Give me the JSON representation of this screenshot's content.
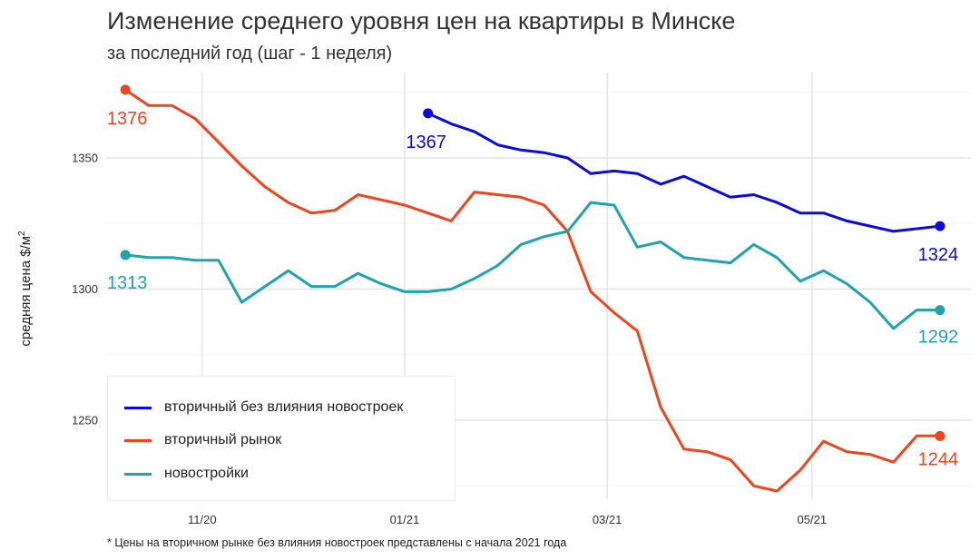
{
  "chart_data": {
    "type": "line",
    "title": "Изменение среднего уровня цен на квартиры в Минске",
    "subtitle": "за последний год (шаг - 1 неделя)",
    "ylabel_main": "средняя цена $/м",
    "ylabel_sup": "2",
    "xlabel": "",
    "footnote": "* Цены на вторичном рынке без влияния новостроек представлены с начала 2021 года",
    "ylim": [
      1216,
      1380
    ],
    "yticks": [
      1250,
      1300,
      1350
    ],
    "ytick_labels": [
      "1250",
      "1300",
      "1350"
    ],
    "xlim": [
      0,
      40
    ],
    "x_ticks": [
      {
        "x": 4.3,
        "label": "11/20"
      },
      {
        "x": 13.0,
        "label": "01/21"
      },
      {
        "x": 21.7,
        "label": "03/21"
      },
      {
        "x": 30.5,
        "label": "05/21"
      }
    ],
    "grid": true,
    "legend_position": "bottom-left",
    "series": [
      {
        "name": "вторичный без влияния новостроек",
        "color": "#0a0adc",
        "x": [
          14,
          15,
          16,
          17,
          18,
          19,
          20,
          21,
          22,
          23,
          24,
          25,
          26,
          27,
          28,
          29,
          30,
          31,
          32,
          33,
          34,
          35,
          36
        ],
        "values": [
          1367,
          1363,
          1360,
          1355,
          1353,
          1352,
          1350,
          1344,
          1345,
          1344,
          1340,
          1343,
          1339,
          1335,
          1336,
          1333,
          1329,
          1329,
          1326,
          1324,
          1322,
          1323,
          1324
        ],
        "start_label": "1367",
        "end_label": "1324"
      },
      {
        "name": "вторичный рынок",
        "color": "#f0441c",
        "x": [
          1,
          2,
          3,
          4,
          5,
          6,
          7,
          8,
          9,
          10,
          11,
          12,
          13,
          14,
          15,
          16,
          17,
          18,
          19,
          20,
          21,
          22,
          23,
          24,
          25,
          26,
          27,
          28,
          29,
          30,
          31,
          32,
          33,
          34,
          35,
          36
        ],
        "values": [
          1376,
          1370,
          1370,
          1365,
          1356,
          1347,
          1339,
          1333,
          1329,
          1330,
          1336,
          1334,
          1332,
          1329,
          1326,
          1337,
          1336,
          1335,
          1332,
          1322,
          1299,
          1291,
          1284,
          1255,
          1239,
          1238,
          1235,
          1225,
          1223,
          1231,
          1242,
          1238,
          1237,
          1234,
          1244,
          1244
        ],
        "start_label": "1376",
        "end_label": "1244"
      },
      {
        "name": "новостройки",
        "color": "#1fa3ad",
        "x": [
          1,
          2,
          3,
          4,
          5,
          6,
          7,
          8,
          9,
          10,
          11,
          12,
          13,
          14,
          15,
          16,
          17,
          18,
          19,
          20,
          21,
          22,
          23,
          24,
          25,
          26,
          27,
          28,
          29,
          30,
          31,
          32,
          33,
          34,
          35,
          36
        ],
        "values": [
          1313,
          1312,
          1312,
          1311,
          1311,
          1295,
          1301,
          1307,
          1301,
          1301,
          1306,
          1302,
          1299,
          1299,
          1300,
          1304,
          1309,
          1317,
          1320,
          1322,
          1333,
          1332,
          1316,
          1318,
          1312,
          1311,
          1310,
          1317,
          1312,
          1303,
          1307,
          1302,
          1295,
          1285,
          1292,
          1292
        ],
        "start_label": "1313",
        "end_label": "1292"
      }
    ]
  }
}
